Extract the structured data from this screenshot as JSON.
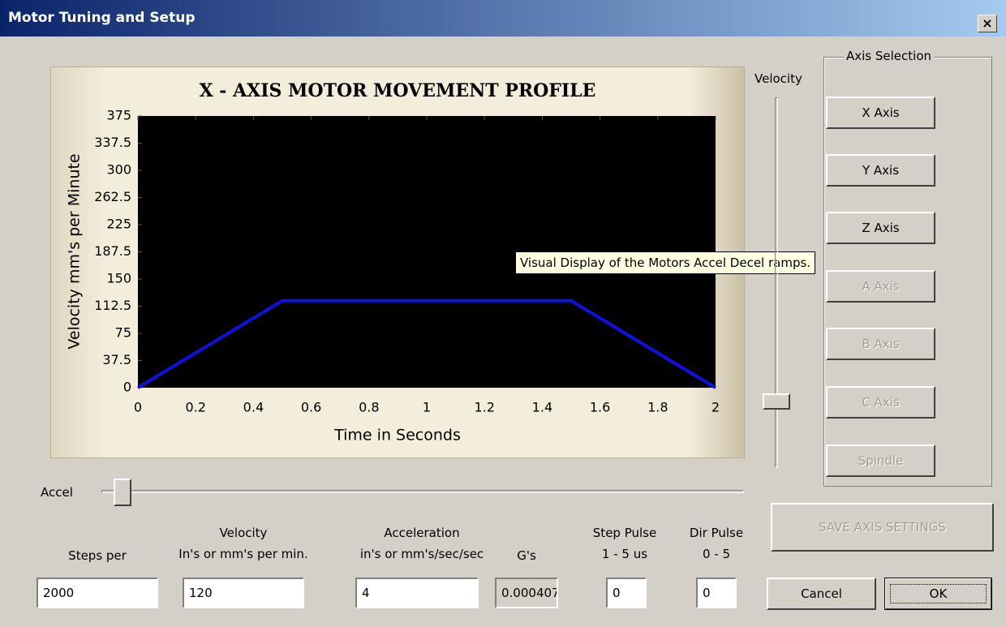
{
  "window": {
    "title": "Motor Tuning and Setup"
  },
  "chart_data": {
    "type": "line",
    "title": "X - AXIS MOTOR MOVEMENT PROFILE",
    "xlabel": "Time in Seconds",
    "ylabel": "Velocity mm's per Minute",
    "x": [
      0,
      0.5,
      1.5,
      2
    ],
    "values": [
      0,
      120,
      120,
      0
    ],
    "color": "#1010e0",
    "background": "#000000",
    "xlim": [
      0,
      2
    ],
    "xticks": [
      0,
      0.2,
      0.4,
      0.6,
      0.8,
      1,
      1.2,
      1.4,
      1.6,
      1.8,
      2
    ],
    "ylim": [
      0,
      375
    ],
    "yticks": [
      0,
      37.5,
      75,
      112.5,
      150,
      187.5,
      225,
      262.5,
      300,
      337.5,
      375
    ]
  },
  "tooltip": "Visual Display of the Motors Accel  Decel ramps.",
  "velocity_slider": {
    "label": "Velocity"
  },
  "accel_slider": {
    "label": "Accel"
  },
  "axis_selection": {
    "title": "Axis Selection",
    "buttons": [
      {
        "label": "X Axis",
        "enabled": true
      },
      {
        "label": "Y Axis",
        "enabled": true
      },
      {
        "label": "Z Axis",
        "enabled": true
      },
      {
        "label": "A Axis",
        "enabled": false
      },
      {
        "label": "B Axis",
        "enabled": false
      },
      {
        "label": "C Axis",
        "enabled": false
      },
      {
        "label": "Spindle",
        "enabled": false
      }
    ]
  },
  "save_button": "SAVE AXIS SETTINGS",
  "fields": [
    {
      "label": [
        "Steps per"
      ],
      "value": "2000"
    },
    {
      "label": [
        "Velocity",
        "In's or mm's per min."
      ],
      "value": "120"
    },
    {
      "label": [
        "Acceleration",
        "in's or mm's/sec/sec"
      ],
      "value": "4"
    },
    {
      "label": [
        "G's"
      ],
      "value": "0.000407"
    },
    {
      "label": [
        "Step Pulse",
        "1 - 5 us"
      ],
      "value": "0"
    },
    {
      "label": [
        "Dir Pulse",
        "0 - 5"
      ],
      "value": "0"
    }
  ],
  "cancel": "Cancel",
  "ok": "OK"
}
